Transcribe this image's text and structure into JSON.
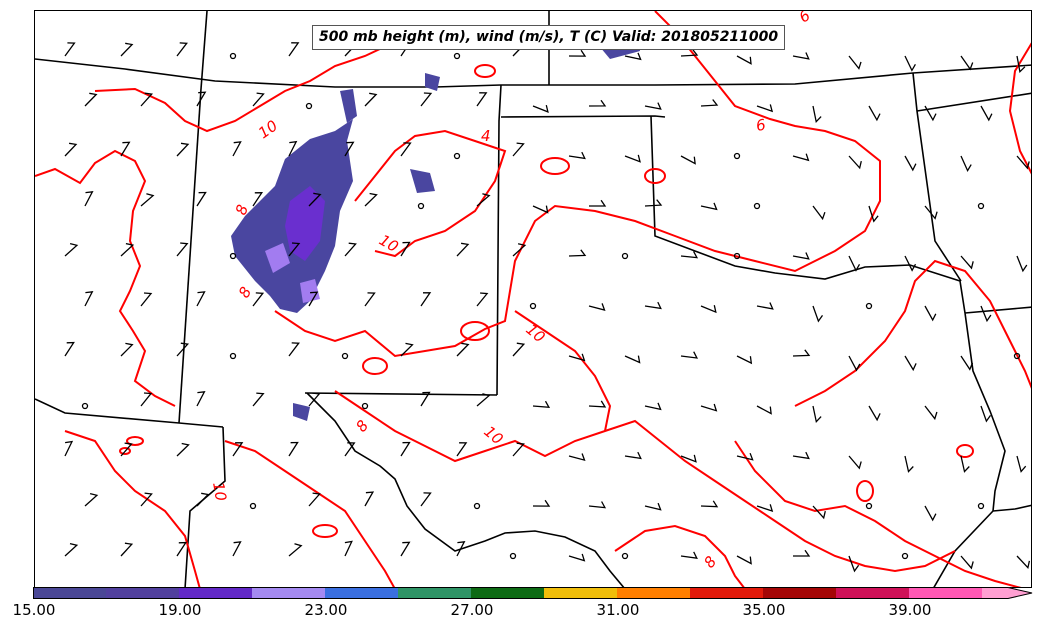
{
  "title": "500 mb height (m), wind (m/s), T (C) Valid: 201805211000",
  "colors": {
    "temperature_contour": "#ff0000",
    "state_borders": "#000000",
    "wind_barbs": "#000000",
    "fill_low": "#4a46a0",
    "fill_mid": "#6a2fcf",
    "fill_high": "#a27cf0"
  },
  "contour_labels": [
    "10",
    "6",
    "4",
    "8",
    "10",
    "10",
    "10",
    "8",
    "10",
    "8",
    "6",
    "8"
  ],
  "colorbar": {
    "ticks": [
      "15.00",
      "19.00",
      "23.00",
      "27.00",
      "31.00",
      "35.00",
      "39.00"
    ],
    "min": 15,
    "max": 43,
    "colors": [
      "#4a4796",
      "#51409e",
      "#6229c7",
      "#a48af1",
      "#3a6fe0",
      "#2e9466",
      "#0d6b14",
      "#f0be0a",
      "#ff7f00",
      "#e21a0a",
      "#a40606",
      "#cf1158",
      "#ff58b4",
      "#ff9fd2"
    ]
  }
}
